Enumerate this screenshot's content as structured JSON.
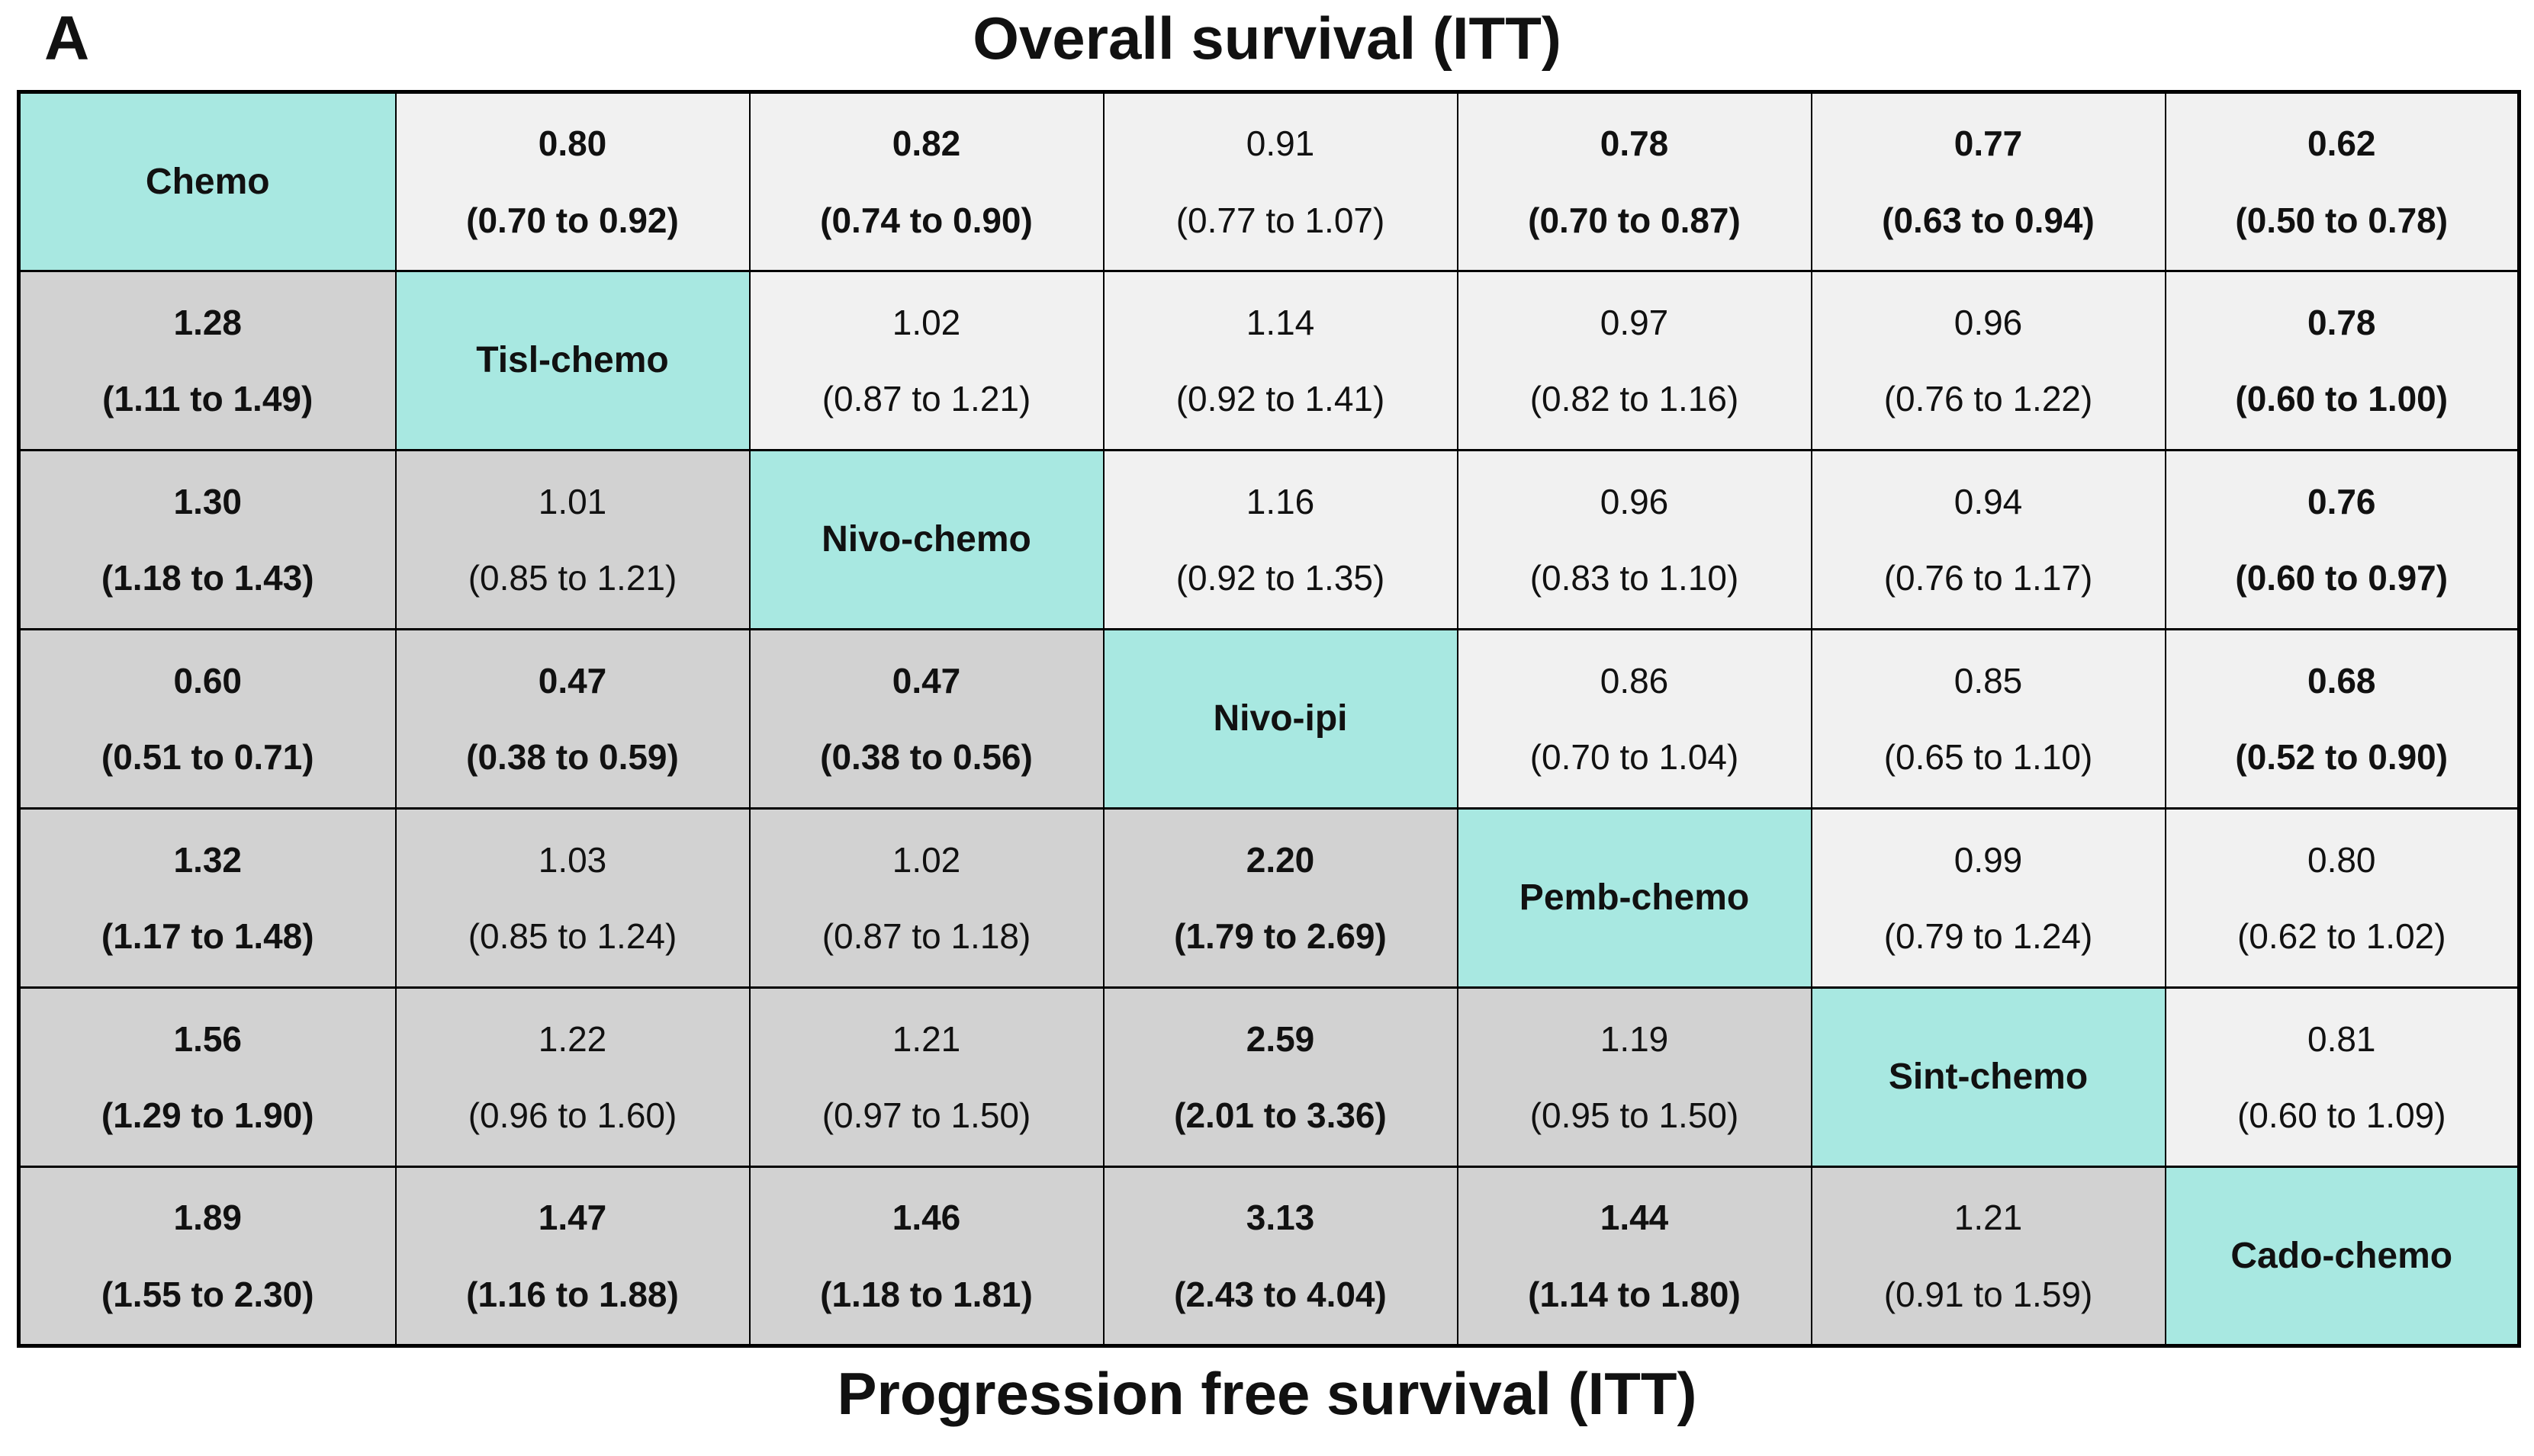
{
  "panel_label": "A",
  "titles": {
    "top": "Overall survival (ITT)",
    "bottom": "Progression free survival (ITT)"
  },
  "colors": {
    "diagonal_bg": "#A8E8E1",
    "upper_triangle_bg": "#F1F1F1",
    "lower_triangle_bg": "#D2D2D2",
    "border": "#000000",
    "text": "#111111"
  },
  "chart_data": {
    "type": "table",
    "subtype": "network-meta-analysis-league-table",
    "panel": "A",
    "upper_triangle_title": "Overall survival (ITT)",
    "lower_triangle_title": "Progression free survival (ITT)",
    "treatments": [
      "Chemo",
      "Tisl-chemo",
      "Nivo-chemo",
      "Nivo-ipi",
      "Pemb-chemo",
      "Sint-chemo",
      "Cado-chemo"
    ],
    "matrix": [
      [
        {
          "label": "Chemo"
        },
        {
          "est": "0.80",
          "ci": "(0.70 to 0.92)",
          "bold": true
        },
        {
          "est": "0.82",
          "ci": "(0.74 to 0.90)",
          "bold": true
        },
        {
          "est": "0.91",
          "ci": "(0.77 to 1.07)",
          "bold": false
        },
        {
          "est": "0.78",
          "ci": "(0.70 to 0.87)",
          "bold": true
        },
        {
          "est": "0.77",
          "ci": "(0.63 to 0.94)",
          "bold": true
        },
        {
          "est": "0.62",
          "ci": "(0.50 to 0.78)",
          "bold": true
        }
      ],
      [
        {
          "est": "1.28",
          "ci": "(1.11 to 1.49)",
          "bold": true
        },
        {
          "label": "Tisl-chemo"
        },
        {
          "est": "1.02",
          "ci": "(0.87 to 1.21)",
          "bold": false
        },
        {
          "est": "1.14",
          "ci": "(0.92 to 1.41)",
          "bold": false
        },
        {
          "est": "0.97",
          "ci": "(0.82 to 1.16)",
          "bold": false
        },
        {
          "est": "0.96",
          "ci": "(0.76 to 1.22)",
          "bold": false
        },
        {
          "est": "0.78",
          "ci": "(0.60 to 1.00)",
          "bold": true
        }
      ],
      [
        {
          "est": "1.30",
          "ci": "(1.18 to 1.43)",
          "bold": true
        },
        {
          "est": "1.01",
          "ci": "(0.85 to 1.21)",
          "bold": false
        },
        {
          "label": "Nivo-chemo"
        },
        {
          "est": "1.16",
          "ci": "(0.92 to 1.35)",
          "bold": false
        },
        {
          "est": "0.96",
          "ci": "(0.83 to 1.10)",
          "bold": false
        },
        {
          "est": "0.94",
          "ci": "(0.76 to 1.17)",
          "bold": false
        },
        {
          "est": "0.76",
          "ci": "(0.60 to 0.97)",
          "bold": true
        }
      ],
      [
        {
          "est": "0.60",
          "ci": "(0.51 to 0.71)",
          "bold": true
        },
        {
          "est": "0.47",
          "ci": "(0.38 to 0.59)",
          "bold": true
        },
        {
          "est": "0.47",
          "ci": "(0.38 to 0.56)",
          "bold": true
        },
        {
          "label": "Nivo-ipi"
        },
        {
          "est": "0.86",
          "ci": "(0.70 to 1.04)",
          "bold": false
        },
        {
          "est": "0.85",
          "ci": "(0.65 to 1.10)",
          "bold": false
        },
        {
          "est": "0.68",
          "ci": "(0.52 to 0.90)",
          "bold": true
        }
      ],
      [
        {
          "est": "1.32",
          "ci": "(1.17 to 1.48)",
          "bold": true
        },
        {
          "est": "1.03",
          "ci": "(0.85 to 1.24)",
          "bold": false
        },
        {
          "est": "1.02",
          "ci": "(0.87 to 1.18)",
          "bold": false
        },
        {
          "est": "2.20",
          "ci": "(1.79 to 2.69)",
          "bold": true
        },
        {
          "label": "Pemb-chemo"
        },
        {
          "est": "0.99",
          "ci": "(0.79 to 1.24)",
          "bold": false
        },
        {
          "est": "0.80",
          "ci": "(0.62 to 1.02)",
          "bold": false
        }
      ],
      [
        {
          "est": "1.56",
          "ci": "(1.29 to 1.90)",
          "bold": true
        },
        {
          "est": "1.22",
          "ci": "(0.96 to 1.60)",
          "bold": false
        },
        {
          "est": "1.21",
          "ci": "(0.97 to 1.50)",
          "bold": false
        },
        {
          "est": "2.59",
          "ci": "(2.01 to 3.36)",
          "bold": true
        },
        {
          "est": "1.19",
          "ci": "(0.95 to 1.50)",
          "bold": false
        },
        {
          "label": "Sint-chemo"
        },
        {
          "est": "0.81",
          "ci": "(0.60 to 1.09)",
          "bold": false
        }
      ],
      [
        {
          "est": "1.89",
          "ci": "(1.55 to 2.30)",
          "bold": true
        },
        {
          "est": "1.47",
          "ci": "(1.16 to 1.88)",
          "bold": true
        },
        {
          "est": "1.46",
          "ci": "(1.18 to 1.81)",
          "bold": true
        },
        {
          "est": "3.13",
          "ci": "(2.43 to 4.04)",
          "bold": true
        },
        {
          "est": "1.44",
          "ci": "(1.14 to 1.80)",
          "bold": true
        },
        {
          "est": "1.21",
          "ci": "(0.91 to 1.59)",
          "bold": false
        },
        {
          "label": "Cado-chemo"
        }
      ]
    ]
  }
}
